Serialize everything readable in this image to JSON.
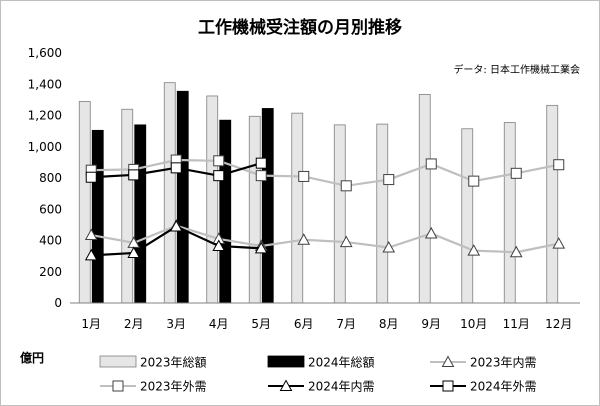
{
  "chart_data": {
    "type": "bar",
    "title": "工作機械受注額の月別推移",
    "source": "データ: 日本工作機械工業会",
    "unit": "億円",
    "categories": [
      "1月",
      "2月",
      "3月",
      "4月",
      "5月",
      "6月",
      "7月",
      "8月",
      "9月",
      "10月",
      "11月",
      "12月"
    ],
    "ylim": [
      0,
      1600
    ],
    "yticks": [
      0,
      200,
      400,
      600,
      800,
      1000,
      1200,
      1400,
      1600
    ],
    "ytick_labels": [
      "0",
      "200",
      "400",
      "600",
      "800",
      "1,000",
      "1,200",
      "1,400",
      "1,600"
    ],
    "grid": false,
    "legend_position": "bottom",
    "bars": [
      {
        "name": "2023年総額",
        "color": "#e6e6e6",
        "values": [
          1290,
          1240,
          1410,
          1325,
          1195,
          1215,
          1140,
          1145,
          1335,
          1115,
          1155,
          1265
        ]
      },
      {
        "name": "2024年総額",
        "color": "#000000",
        "values": [
          1105,
          1140,
          1355,
          1170,
          1245
        ]
      }
    ],
    "lines": [
      {
        "name": "2023年内需",
        "color": "#bfbfbf",
        "marker": "triangle",
        "values": [
          435,
          385,
          495,
          410,
          365,
          405,
          390,
          355,
          445,
          335,
          325,
          380
        ]
      },
      {
        "name": "2023年外需",
        "color": "#bfbfbf",
        "marker": "square",
        "values": [
          850,
          855,
          915,
          910,
          815,
          810,
          750,
          790,
          890,
          780,
          830,
          885
        ]
      },
      {
        "name": "2024年内需",
        "color": "#000000",
        "marker": "triangle",
        "values": [
          305,
          320,
          490,
          365,
          350
        ]
      },
      {
        "name": "2024年外需",
        "color": "#000000",
        "marker": "square",
        "values": [
          805,
          820,
          865,
          815,
          895
        ]
      }
    ]
  }
}
